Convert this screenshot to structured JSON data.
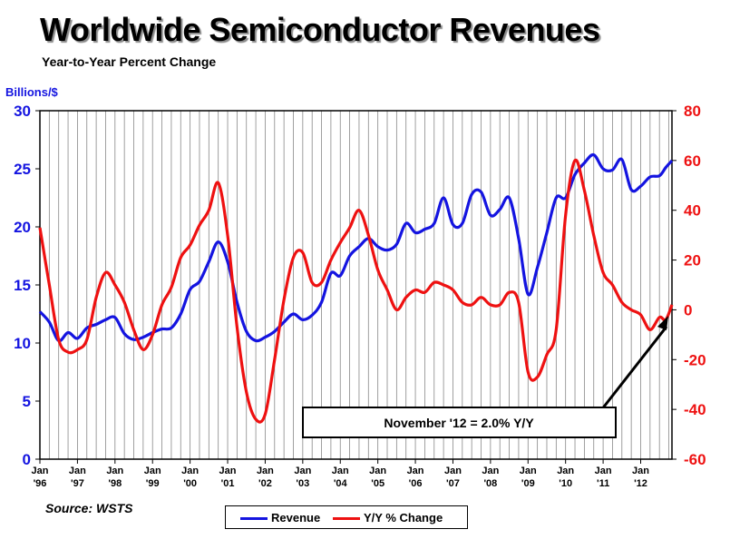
{
  "title": "Worldwide Semiconductor Revenues",
  "subtitle": "Year-to-Year Percent Change",
  "y_left_unit": "Billions/$",
  "source": "Source: WSTS",
  "annotation": "November '12 = 2.0% Y/Y",
  "colors": {
    "revenue": "#1414e0",
    "yoy": "#ee1111",
    "left_axis": "#1414e0",
    "right_axis": "#ee1111",
    "grid": "#888888"
  },
  "chart_data": {
    "type": "line",
    "x_range": [
      "1996-01",
      "2012-11"
    ],
    "x_tick_labels": [
      {
        "month": "Jan",
        "year": "'96"
      },
      {
        "month": "Jan",
        "year": "'97"
      },
      {
        "month": "Jan",
        "year": "'98"
      },
      {
        "month": "Jan",
        "year": "'99"
      },
      {
        "month": "Jan",
        "year": "'00"
      },
      {
        "month": "Jan",
        "year": "'01"
      },
      {
        "month": "Jan",
        "year": "'02"
      },
      {
        "month": "Jan",
        "year": "'03"
      },
      {
        "month": "Jan",
        "year": "'04"
      },
      {
        "month": "Jan",
        "year": "'05"
      },
      {
        "month": "Jan",
        "year": "'06"
      },
      {
        "month": "Jan",
        "year": "'07"
      },
      {
        "month": "Jan",
        "year": "'08"
      },
      {
        "month": "Jan",
        "year": "'09"
      },
      {
        "month": "Jan",
        "year": "'10"
      },
      {
        "month": "Jan",
        "year": "'11"
      },
      {
        "month": "Jan",
        "year": "'12"
      }
    ],
    "y_left": {
      "range": [
        0,
        30
      ],
      "ticks": [
        0,
        5,
        10,
        15,
        20,
        25,
        30
      ]
    },
    "y_right": {
      "range": [
        -60,
        80
      ],
      "ticks": [
        -60,
        -40,
        -20,
        0,
        20,
        40,
        60,
        80
      ]
    },
    "grid": "vertical",
    "legend_position": "bottom",
    "series": [
      {
        "name": "Revenue",
        "axis": "left",
        "points": [
          [
            "1996-01",
            12.7
          ],
          [
            "1996-04",
            11.8
          ],
          [
            "1996-07",
            10.2
          ],
          [
            "1996-10",
            10.9
          ],
          [
            "1997-01",
            10.4
          ],
          [
            "1997-04",
            11.3
          ],
          [
            "1997-07",
            11.6
          ],
          [
            "1997-10",
            12.0
          ],
          [
            "1998-01",
            12.2
          ],
          [
            "1998-04",
            10.8
          ],
          [
            "1998-07",
            10.3
          ],
          [
            "1998-10",
            10.5
          ],
          [
            "1999-01",
            10.9
          ],
          [
            "1999-04",
            11.2
          ],
          [
            "1999-07",
            11.3
          ],
          [
            "1999-10",
            12.5
          ],
          [
            "2000-01",
            14.6
          ],
          [
            "2000-04",
            15.3
          ],
          [
            "2000-07",
            17.0
          ],
          [
            "2000-10",
            18.7
          ],
          [
            "2001-01",
            17.0
          ],
          [
            "2001-04",
            13.5
          ],
          [
            "2001-07",
            11.0
          ],
          [
            "2001-10",
            10.2
          ],
          [
            "2002-01",
            10.5
          ],
          [
            "2002-04",
            11.0
          ],
          [
            "2002-07",
            11.8
          ],
          [
            "2002-10",
            12.5
          ],
          [
            "2003-01",
            12.0
          ],
          [
            "2003-04",
            12.4
          ],
          [
            "2003-07",
            13.5
          ],
          [
            "2003-10",
            16.0
          ],
          [
            "2004-01",
            15.8
          ],
          [
            "2004-04",
            17.5
          ],
          [
            "2004-07",
            18.3
          ],
          [
            "2004-10",
            19.0
          ],
          [
            "2005-01",
            18.3
          ],
          [
            "2005-04",
            18.0
          ],
          [
            "2005-07",
            18.5
          ],
          [
            "2005-10",
            20.3
          ],
          [
            "2006-01",
            19.5
          ],
          [
            "2006-04",
            19.8
          ],
          [
            "2006-07",
            20.3
          ],
          [
            "2006-10",
            22.5
          ],
          [
            "2007-01",
            20.2
          ],
          [
            "2007-04",
            20.3
          ],
          [
            "2007-07",
            22.8
          ],
          [
            "2007-10",
            23.0
          ],
          [
            "2008-01",
            21.0
          ],
          [
            "2008-04",
            21.5
          ],
          [
            "2008-07",
            22.5
          ],
          [
            "2008-10",
            19.0
          ],
          [
            "2009-01",
            14.2
          ],
          [
            "2009-04",
            16.5
          ],
          [
            "2009-07",
            19.5
          ],
          [
            "2009-10",
            22.5
          ],
          [
            "2010-01",
            22.5
          ],
          [
            "2010-04",
            24.5
          ],
          [
            "2010-07",
            25.5
          ],
          [
            "2010-10",
            26.2
          ],
          [
            "2011-01",
            25.0
          ],
          [
            "2011-04",
            24.9
          ],
          [
            "2011-07",
            25.8
          ],
          [
            "2011-10",
            23.2
          ],
          [
            "2012-01",
            23.5
          ],
          [
            "2012-04",
            24.3
          ],
          [
            "2012-07",
            24.4
          ],
          [
            "2012-09",
            25.1
          ],
          [
            "2012-11",
            25.7
          ]
        ]
      },
      {
        "name": "Y/Y % Change",
        "axis": "right",
        "points": [
          [
            "1996-01",
            33
          ],
          [
            "1996-04",
            10
          ],
          [
            "1996-07",
            -12
          ],
          [
            "1996-10",
            -17
          ],
          [
            "1997-01",
            -16
          ],
          [
            "1997-04",
            -12
          ],
          [
            "1997-07",
            5
          ],
          [
            "1997-10",
            15
          ],
          [
            "1998-01",
            10
          ],
          [
            "1998-04",
            3
          ],
          [
            "1998-07",
            -8
          ],
          [
            "1998-10",
            -16
          ],
          [
            "1999-01",
            -10
          ],
          [
            "1999-04",
            2
          ],
          [
            "1999-07",
            9
          ],
          [
            "1999-10",
            21
          ],
          [
            "2000-01",
            26
          ],
          [
            "2000-04",
            34
          ],
          [
            "2000-07",
            40
          ],
          [
            "2000-10",
            51
          ],
          [
            "2001-01",
            30
          ],
          [
            "2001-04",
            -7
          ],
          [
            "2001-07",
            -33
          ],
          [
            "2001-10",
            -44
          ],
          [
            "2002-01",
            -42
          ],
          [
            "2002-04",
            -20
          ],
          [
            "2002-07",
            4
          ],
          [
            "2002-10",
            21
          ],
          [
            "2003-01",
            23
          ],
          [
            "2003-04",
            11
          ],
          [
            "2003-07",
            11
          ],
          [
            "2003-10",
            20
          ],
          [
            "2004-01",
            27
          ],
          [
            "2004-04",
            33
          ],
          [
            "2004-07",
            40
          ],
          [
            "2004-10",
            30
          ],
          [
            "2005-01",
            16
          ],
          [
            "2005-04",
            8
          ],
          [
            "2005-07",
            0
          ],
          [
            "2005-10",
            5
          ],
          [
            "2006-01",
            8
          ],
          [
            "2006-04",
            7
          ],
          [
            "2006-07",
            11
          ],
          [
            "2006-10",
            10
          ],
          [
            "2007-01",
            8
          ],
          [
            "2007-04",
            3
          ],
          [
            "2007-07",
            2
          ],
          [
            "2007-10",
            5
          ],
          [
            "2008-01",
            2
          ],
          [
            "2008-04",
            2
          ],
          [
            "2008-07",
            7
          ],
          [
            "2008-10",
            3
          ],
          [
            "2009-01",
            -25
          ],
          [
            "2009-04",
            -27
          ],
          [
            "2009-07",
            -18
          ],
          [
            "2009-10",
            -8
          ],
          [
            "2010-01",
            38
          ],
          [
            "2010-04",
            60
          ],
          [
            "2010-07",
            48
          ],
          [
            "2010-10",
            30
          ],
          [
            "2011-01",
            15
          ],
          [
            "2011-04",
            10
          ],
          [
            "2011-07",
            3
          ],
          [
            "2011-10",
            0
          ],
          [
            "2012-01",
            -2
          ],
          [
            "2012-04",
            -8
          ],
          [
            "2012-07",
            -3
          ],
          [
            "2012-09",
            -4
          ],
          [
            "2012-11",
            2
          ]
        ]
      }
    ]
  }
}
